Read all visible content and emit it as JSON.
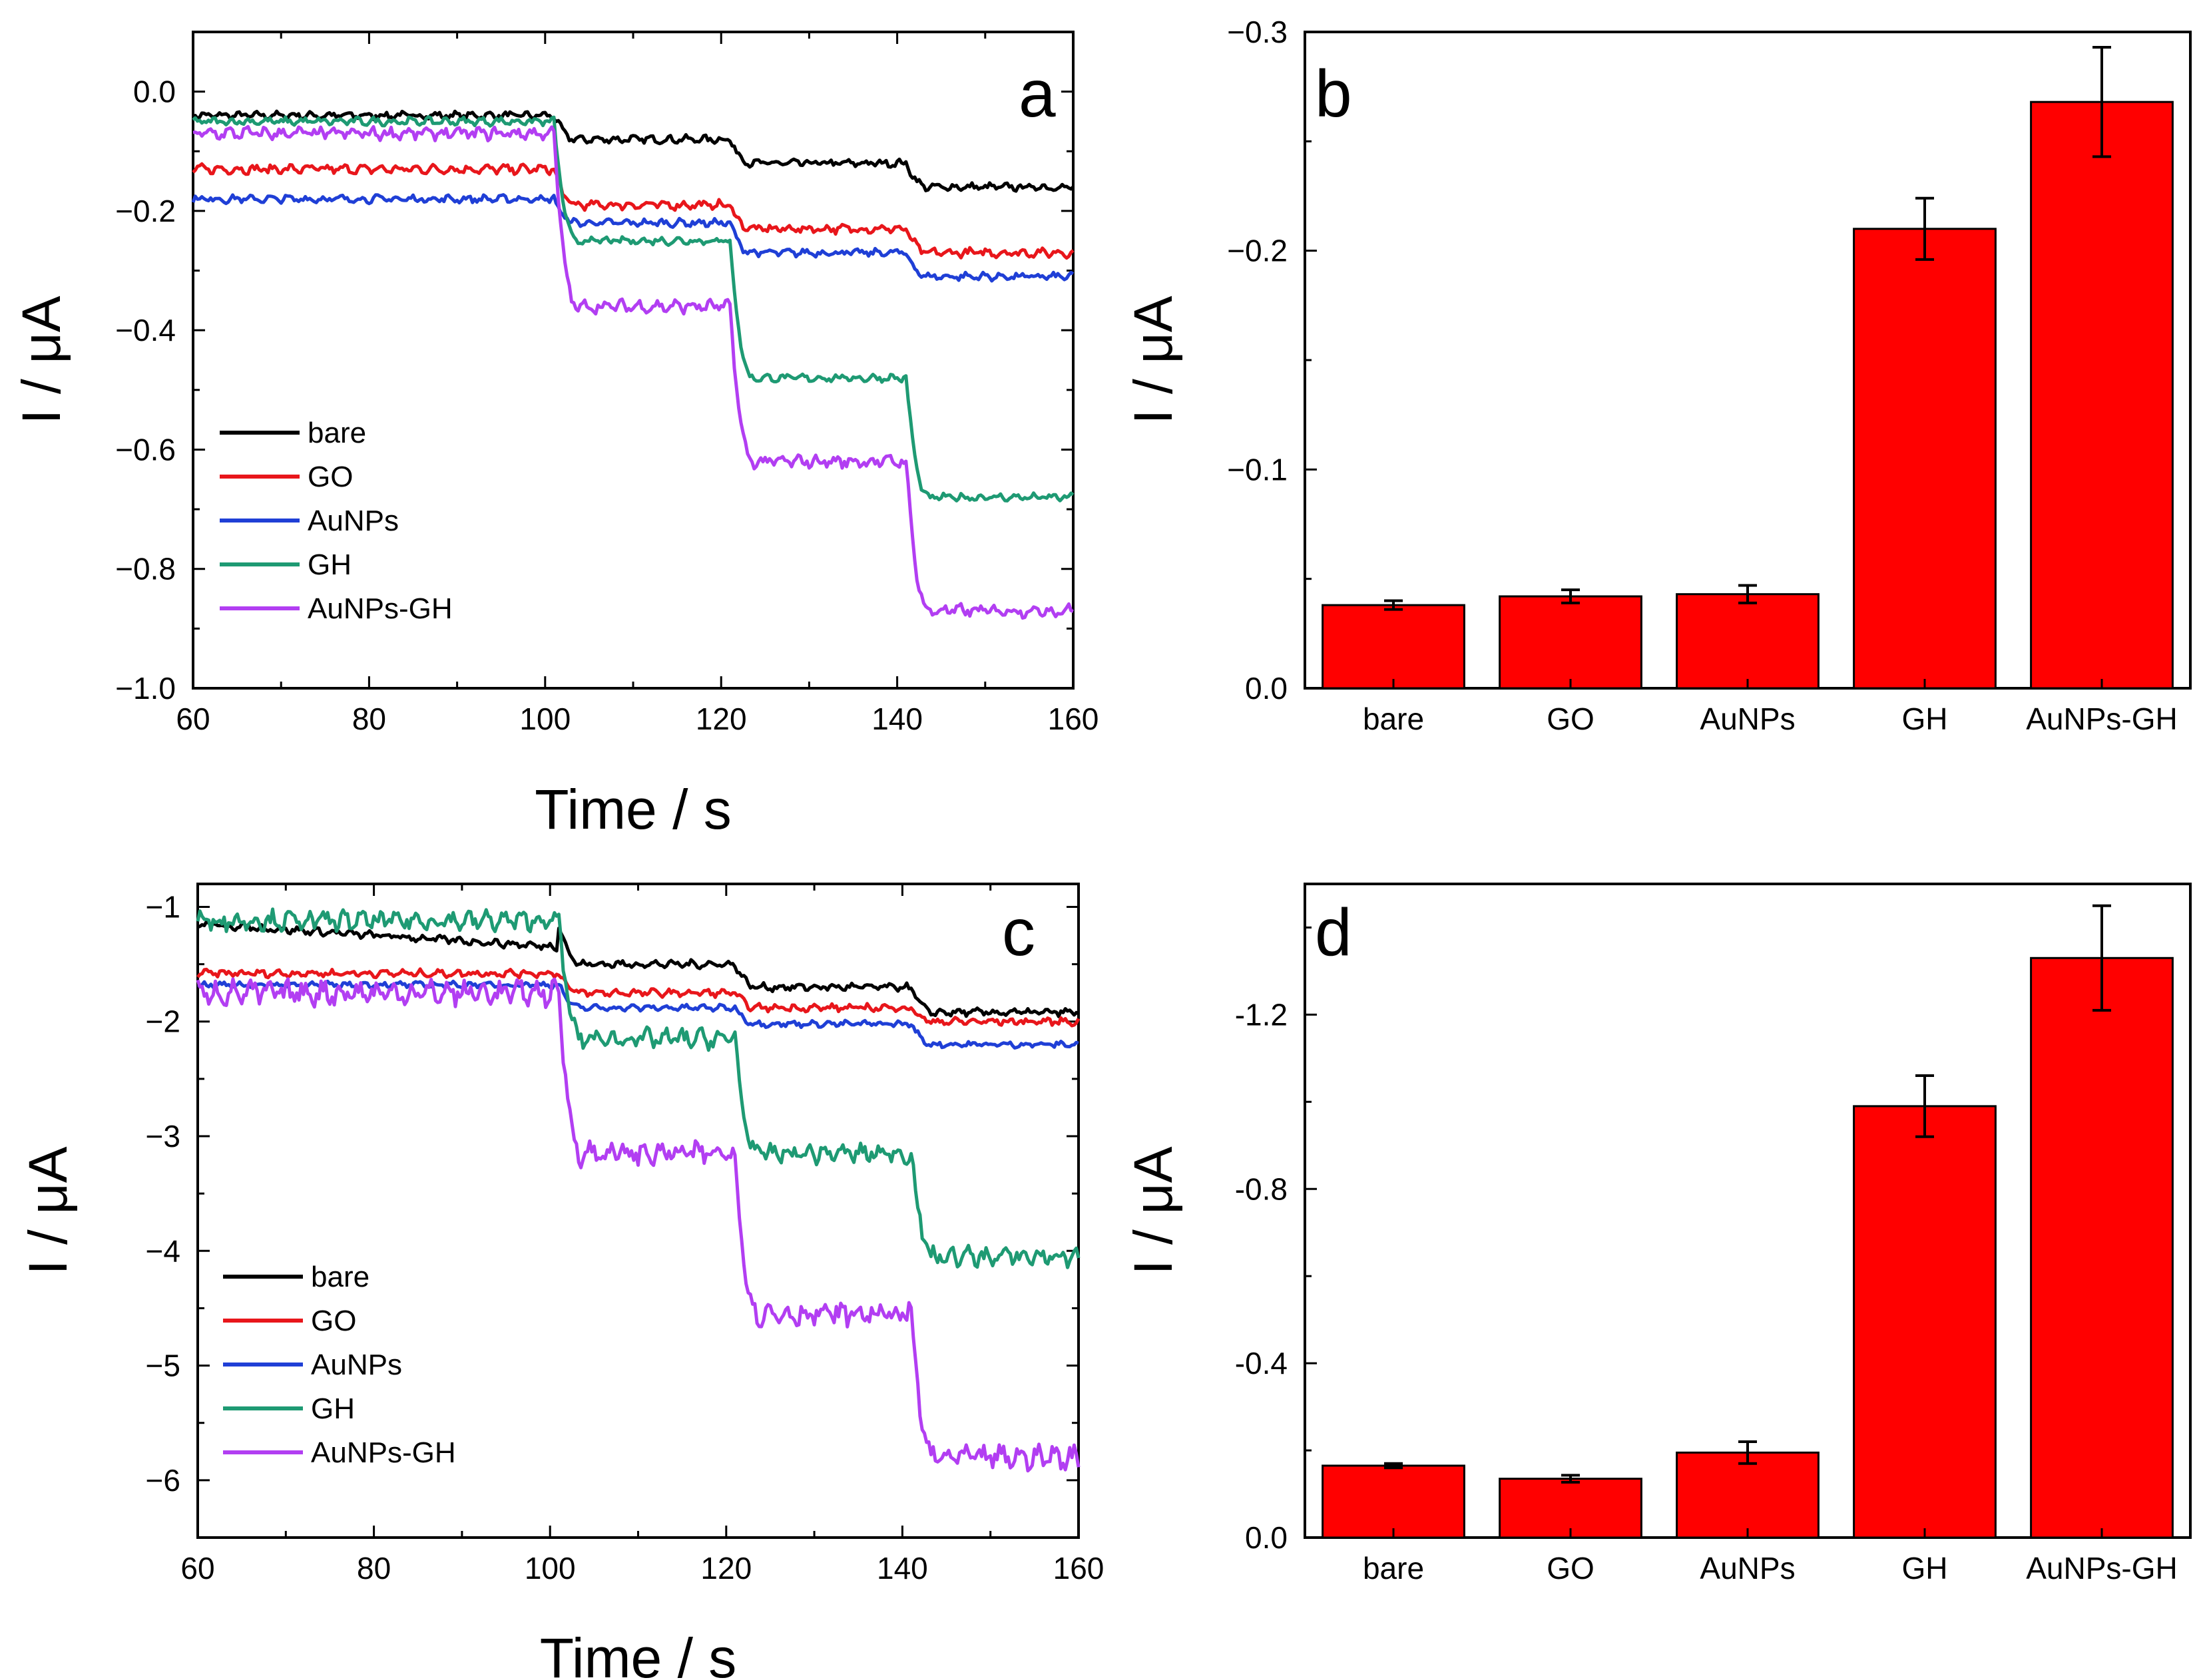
{
  "chart_data": [
    {
      "panel": "a",
      "type": "line",
      "xlabel": "Time / s",
      "ylabel": "I / μA",
      "xlim": [
        60,
        160
      ],
      "ylim": [
        -1.0,
        0.1
      ],
      "xticks": [
        60,
        80,
        100,
        120,
        140,
        160
      ],
      "xtick_labels": [
        "60",
        "80",
        "100",
        "120",
        "140",
        "160"
      ],
      "yticks": [
        0.0,
        -0.2,
        -0.4,
        -0.6,
        -0.8,
        -1.0
      ],
      "ytick_labels": [
        "0.0",
        "−0.2",
        "−0.4",
        "−0.6",
        "−0.8",
        "−1.0"
      ],
      "step_times": [
        101,
        121,
        141
      ],
      "legend_position": "lower-left",
      "series": [
        {
          "name": "bare",
          "color": "#000000",
          "levels": [
            -0.04,
            -0.08,
            -0.12,
            -0.16
          ],
          "noise": 0.006
        },
        {
          "name": "GO",
          "color": "#e8161b",
          "levels": [
            -0.13,
            -0.19,
            -0.23,
            -0.27
          ],
          "noise": 0.007
        },
        {
          "name": "AuNPs",
          "color": "#1f3fd6",
          "levels": [
            -0.18,
            -0.22,
            -0.27,
            -0.31
          ],
          "noise": 0.006
        },
        {
          "name": "GH",
          "color": "#1e9a73",
          "levels": [
            -0.05,
            -0.25,
            -0.48,
            -0.68
          ],
          "noise": 0.006
        },
        {
          "name": "AuNPs-GH",
          "color": "#b23ef2",
          "levels": [
            -0.07,
            -0.36,
            -0.62,
            -0.87
          ],
          "noise": 0.01
        }
      ]
    },
    {
      "panel": "b",
      "type": "bar",
      "xlabel": "",
      "ylabel": "I / μA",
      "categories": [
        "bare",
        "GO",
        "AuNPs",
        "GH",
        "AuNPs-GH"
      ],
      "values": [
        -0.038,
        -0.042,
        -0.043,
        -0.21,
        -0.268
      ],
      "errors": [
        0.002,
        0.003,
        0.004,
        0.014,
        0.025
      ],
      "ylim": [
        0.0,
        -0.3
      ],
      "yticks": [
        0.0,
        -0.1,
        -0.2,
        -0.3
      ],
      "ytick_labels": [
        "0.0",
        "−0.1",
        "−0.2",
        "−0.3"
      ],
      "bar_color": "#ff0000"
    },
    {
      "panel": "c",
      "type": "line",
      "xlabel": "Time / s",
      "ylabel": "I / μA",
      "xlim": [
        60,
        160
      ],
      "ylim": [
        -6.5,
        -0.8
      ],
      "xticks": [
        60,
        80,
        100,
        120,
        140,
        160
      ],
      "xtick_labels": [
        "60",
        "80",
        "100",
        "120",
        "140",
        "160"
      ],
      "yticks": [
        -1,
        -2,
        -3,
        -4,
        -5,
        -6
      ],
      "ytick_labels": [
        "−1",
        "−2",
        "−3",
        "−4",
        "−5",
        "−6"
      ],
      "step_times": [
        101,
        121,
        141
      ],
      "legend_position": "lower-left",
      "series": [
        {
          "name": "bare",
          "color": "#000000",
          "levels": [
            -1.15,
            -1.5,
            -1.7,
            -1.92
          ],
          "slope": true,
          "noise": 0.03
        },
        {
          "name": "GO",
          "color": "#e8161b",
          "levels": [
            -1.58,
            -1.75,
            -1.88,
            -2.0
          ],
          "noise": 0.03
        },
        {
          "name": "AuNPs",
          "color": "#1f3fd6",
          "levels": [
            -1.68,
            -1.88,
            -2.02,
            -2.2
          ],
          "noise": 0.025
        },
        {
          "name": "GH",
          "color": "#1e9a73",
          "levels": [
            -1.12,
            -2.15,
            -3.15,
            -4.05
          ],
          "noise": 0.08
        },
        {
          "name": "AuNPs-GH",
          "color": "#b23ef2",
          "levels": [
            -1.75,
            -3.15,
            -4.55,
            -5.8
          ],
          "noise": 0.1
        }
      ]
    },
    {
      "panel": "d",
      "type": "bar",
      "xlabel": "",
      "ylabel": "I / μA",
      "categories": [
        "bare",
        "GO",
        "AuNPs",
        "GH",
        "AuNPs-GH"
      ],
      "values": [
        -0.165,
        -0.135,
        -0.195,
        -0.99,
        -1.33
      ],
      "errors": [
        0.005,
        0.008,
        0.025,
        0.07,
        0.12
      ],
      "ylim": [
        0.0,
        -1.5
      ],
      "yticks": [
        0.0,
        -0.4,
        -0.8,
        -1.2
      ],
      "ytick_labels": [
        "0.0",
        "-0.4",
        "-0.8",
        "-1.2"
      ],
      "bar_color": "#ff0000"
    }
  ]
}
